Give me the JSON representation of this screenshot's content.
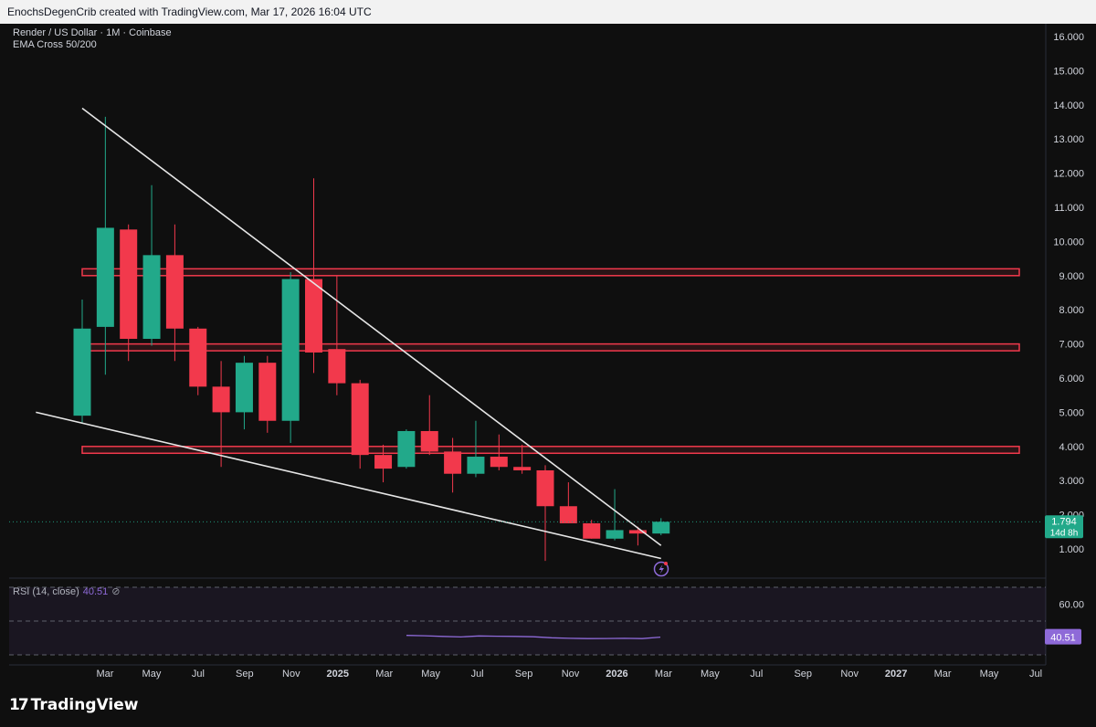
{
  "header": {
    "attribution": "EnochsDegenCrib created with TradingView.com, Mar 17, 2026 16:04 UTC"
  },
  "legend": {
    "symbol": "Render / US Dollar · 1M · Coinbase",
    "indicator": "EMA Cross 50/200"
  },
  "rsi": {
    "label": "RSI (14, close)",
    "value": "40.51",
    "axis_ticks": [
      "60.00"
    ],
    "series": [
      41.5,
      41.3,
      40.9,
      40.6,
      41.2,
      41.0,
      40.9,
      40.7,
      40.1,
      39.8,
      39.6,
      39.7,
      39.8,
      39.6,
      40.5
    ],
    "color": "#8e6ad8"
  },
  "price_badge": {
    "price": "1.794",
    "countdown": "14d 8h"
  },
  "branding": {
    "logo_text": "TradingView"
  },
  "colors": {
    "up": "#22a98a",
    "down": "#f2394c",
    "zone": "#f2394c",
    "trendline": "#e6e6e6",
    "rsi": "#8e6ad8"
  },
  "chart_data": {
    "type": "candlestick",
    "y_ticks": [
      "1.000",
      "2.000",
      "3.000",
      "4.000",
      "5.000",
      "6.000",
      "7.000",
      "8.000",
      "9.000",
      "10.000",
      "11.000",
      "12.000",
      "13.000",
      "14.000",
      "15.000",
      "16.000"
    ],
    "x_ticks": [
      "Mar",
      "May",
      "Jul",
      "Sep",
      "Nov",
      "2025",
      "Mar",
      "May",
      "Jul",
      "Sep",
      "Nov",
      "2026",
      "Mar",
      "May",
      "Jul",
      "Sep",
      "Nov",
      "2027",
      "Mar",
      "May",
      "Jul"
    ],
    "ylim": [
      0.2,
      16.3
    ],
    "candles": [
      {
        "month": "2024-01",
        "o": 4.9,
        "h": 8.3,
        "l": 4.7,
        "c": 7.45
      },
      {
        "month": "2024-02",
        "o": 7.5,
        "h": 13.65,
        "l": 6.1,
        "c": 10.4
      },
      {
        "month": "2024-03",
        "o": 10.35,
        "h": 10.5,
        "l": 6.5,
        "c": 7.15
      },
      {
        "month": "2024-04",
        "o": 7.15,
        "h": 11.65,
        "l": 6.95,
        "c": 9.6
      },
      {
        "month": "2024-05",
        "o": 9.6,
        "h": 10.5,
        "l": 6.5,
        "c": 7.45
      },
      {
        "month": "2024-06",
        "o": 7.45,
        "h": 7.5,
        "l": 5.5,
        "c": 5.75
      },
      {
        "month": "2024-07",
        "o": 5.75,
        "h": 6.5,
        "l": 3.4,
        "c": 5.0
      },
      {
        "month": "2024-08",
        "o": 5.0,
        "h": 6.65,
        "l": 4.5,
        "c": 6.45
      },
      {
        "month": "2024-09",
        "o": 6.45,
        "h": 6.65,
        "l": 4.4,
        "c": 4.75
      },
      {
        "month": "2024-10",
        "o": 4.75,
        "h": 9.1,
        "l": 4.1,
        "c": 8.9
      },
      {
        "month": "2024-11",
        "o": 8.9,
        "h": 11.85,
        "l": 6.15,
        "c": 6.75
      },
      {
        "month": "2024-12",
        "o": 6.85,
        "h": 9.0,
        "l": 5.5,
        "c": 5.85
      },
      {
        "month": "2025-01",
        "o": 5.85,
        "h": 5.95,
        "l": 3.35,
        "c": 3.75
      },
      {
        "month": "2025-02",
        "o": 3.75,
        "h": 4.05,
        "l": 2.95,
        "c": 3.35
      },
      {
        "month": "2025-03",
        "o": 3.4,
        "h": 4.5,
        "l": 3.35,
        "c": 4.45
      },
      {
        "month": "2025-04",
        "o": 4.45,
        "h": 5.5,
        "l": 3.75,
        "c": 3.85
      },
      {
        "month": "2025-05",
        "o": 3.85,
        "h": 4.25,
        "l": 2.65,
        "c": 3.2
      },
      {
        "month": "2025-06",
        "o": 3.2,
        "h": 4.75,
        "l": 3.1,
        "c": 3.7
      },
      {
        "month": "2025-07",
        "o": 3.7,
        "h": 4.35,
        "l": 3.3,
        "c": 3.4
      },
      {
        "month": "2025-08",
        "o": 3.4,
        "h": 4.05,
        "l": 3.2,
        "c": 3.3
      },
      {
        "month": "2025-09",
        "o": 3.3,
        "h": 3.45,
        "l": 0.65,
        "c": 2.25
      },
      {
        "month": "2025-10",
        "o": 2.25,
        "h": 2.95,
        "l": 1.75,
        "c": 1.75
      },
      {
        "month": "2025-11",
        "o": 1.75,
        "h": 1.85,
        "l": 1.3,
        "c": 1.3
      },
      {
        "month": "2025-12",
        "o": 1.3,
        "h": 2.75,
        "l": 1.25,
        "c": 1.55
      },
      {
        "month": "2026-01",
        "o": 1.55,
        "h": 1.65,
        "l": 1.1,
        "c": 1.45
      },
      {
        "month": "2026-02",
        "o": 1.45,
        "h": 1.9,
        "l": 1.4,
        "c": 1.794
      }
    ],
    "zones": [
      [
        9.0,
        9.2
      ],
      [
        6.8,
        7.0
      ],
      [
        3.8,
        4.0
      ]
    ],
    "trendlines": [
      {
        "from": [
          "2024-01",
          13.9
        ],
        "to": [
          "2026-02",
          1.1
        ]
      },
      {
        "from": [
          "2023-11",
          5.0
        ],
        "to": [
          "2026-02",
          0.72
        ]
      }
    ],
    "last_price": 1.794
  }
}
